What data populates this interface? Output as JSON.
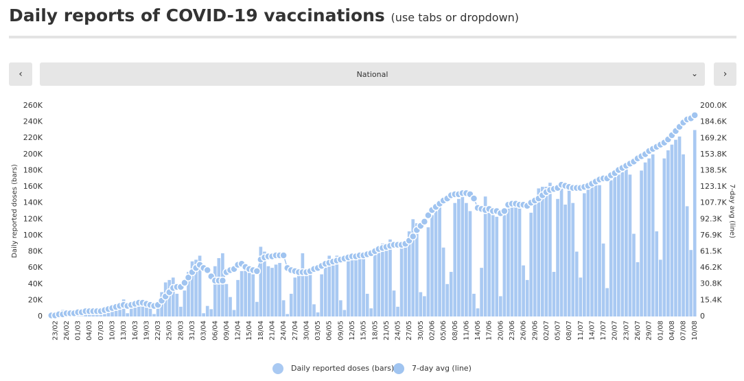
{
  "header": {
    "title": "Daily reports of COVID-19 vaccinations",
    "subtitle": "(use tabs or dropdown)"
  },
  "dropdown": {
    "selected": "National"
  },
  "chart_data": {
    "type": "bar",
    "categories": [
      null,
      "23/02",
      null,
      null,
      "26/02",
      null,
      null,
      "01/03",
      null,
      null,
      "04/03",
      null,
      null,
      "07/03",
      null,
      null,
      "10/03",
      null,
      null,
      "13/03",
      null,
      null,
      "16/03",
      null,
      null,
      "19/03",
      null,
      null,
      "22/03",
      null,
      null,
      "25/03",
      null,
      null,
      "28/03",
      null,
      null,
      "31/03",
      null,
      null,
      "03/04",
      null,
      null,
      "06/04",
      null,
      null,
      "09/04",
      null,
      null,
      "12/04",
      null,
      null,
      "15/04",
      null,
      null,
      "18/04",
      null,
      null,
      "21/04",
      null,
      null,
      "24/04",
      null,
      null,
      "27/04",
      null,
      null,
      "30/04",
      null,
      null,
      "03/05",
      null,
      null,
      "06/05",
      null,
      null,
      "09/05",
      null,
      null,
      "12/05",
      null,
      null,
      "15/05",
      null,
      null,
      "18/05",
      null,
      null,
      "21/05",
      null,
      null,
      "24/05",
      null,
      null,
      "27/05",
      null,
      null,
      "30/05",
      null,
      null,
      "02/06",
      null,
      null,
      "05/06",
      null,
      null,
      "08/06",
      null,
      null,
      "11/06",
      null,
      null,
      "14/06",
      null,
      null,
      "17/06",
      null,
      null,
      "20/06",
      null,
      null,
      "23/06",
      null,
      null,
      "26/06",
      null,
      null,
      "29/06",
      null,
      null,
      "02/07",
      null,
      null,
      "05/07",
      null,
      null,
      "08/07",
      null,
      null,
      "11/07",
      null,
      null,
      "14/07",
      null,
      null,
      "17/07",
      null,
      null,
      "20/07",
      null,
      null,
      "23/07",
      null,
      null,
      "26/07",
      null,
      null,
      "29/07",
      null,
      null,
      "01/08",
      null,
      null,
      "04/08",
      null,
      null,
      "07/08",
      null,
      null,
      "10/08"
    ],
    "series": [
      {
        "name": "Daily reported doses (bars)",
        "color": "#a9c9f2",
        "values": [
          2,
          1,
          3,
          8,
          4,
          3,
          2,
          3,
          4,
          5,
          5,
          5,
          4,
          2,
          5,
          6,
          8,
          10,
          14,
          21,
          4,
          12,
          20,
          18,
          15,
          12,
          11,
          3,
          12,
          30,
          42,
          45,
          48,
          28,
          12,
          32,
          55,
          68,
          70,
          75,
          4,
          13,
          9,
          62,
          72,
          78,
          40,
          24,
          8,
          45,
          56,
          60,
          56,
          52,
          18,
          86,
          80,
          62,
          60,
          64,
          66,
          20,
          3,
          28,
          48,
          55,
          78,
          50,
          55,
          15,
          5,
          52,
          65,
          75,
          70,
          75,
          20,
          8,
          70,
          72,
          72,
          75,
          80,
          28,
          10,
          78,
          85,
          90,
          88,
          95,
          32,
          12,
          85,
          90,
          105,
          120,
          115,
          30,
          25,
          110,
          125,
          130,
          135,
          85,
          40,
          55,
          140,
          145,
          148,
          140,
          130,
          28,
          10,
          60,
          148,
          130,
          125,
          123,
          25,
          125,
          135,
          138,
          136,
          135,
          63,
          45,
          128,
          140,
          158,
          160,
          160,
          165,
          55,
          145,
          163,
          138,
          160,
          140,
          80,
          48,
          152,
          160,
          165,
          170,
          162,
          90,
          35,
          168,
          172,
          175,
          178,
          185,
          175,
          102,
          67,
          180,
          190,
          195,
          200,
          105,
          70,
          195,
          205,
          212,
          218,
          222,
          200,
          136,
          82,
          230
        ]
      },
      {
        "name": "7-day avg (line)",
        "color": "#a0c4f0",
        "type": "line",
        "axis": "y2",
        "values": [
          1,
          1,
          2,
          2,
          3,
          3,
          3,
          4,
          4,
          5,
          5,
          5,
          5,
          5,
          6,
          7,
          8,
          9,
          10,
          11,
          10,
          11,
          12,
          13,
          13,
          12,
          11,
          10,
          11,
          15,
          19,
          23,
          27,
          28,
          28,
          32,
          37,
          42,
          46,
          49,
          46,
          44,
          38,
          34,
          34,
          34,
          42,
          44,
          45,
          49,
          50,
          47,
          45,
          44,
          43,
          54,
          56,
          57,
          57,
          58,
          58,
          58,
          46,
          44,
          43,
          42,
          42,
          42,
          43,
          45,
          46,
          48,
          50,
          51,
          52,
          53,
          54,
          55,
          56,
          57,
          57,
          58,
          58,
          59,
          60,
          62,
          64,
          65,
          66,
          67,
          68,
          68,
          68,
          69,
          72,
          76,
          82,
          86,
          90,
          96,
          101,
          104,
          107,
          110,
          112,
          115,
          116,
          116,
          117,
          117,
          116,
          112,
          103,
          102,
          101,
          102,
          100,
          100,
          98,
          100,
          106,
          107,
          107,
          106,
          106,
          105,
          108,
          110,
          112,
          115,
          118,
          120,
          121,
          122,
          125,
          124,
          123,
          122,
          122,
          122,
          123,
          124,
          126,
          128,
          130,
          131,
          131,
          134,
          136,
          139,
          141,
          143,
          145,
          147,
          150,
          152,
          154,
          157,
          159,
          161,
          163,
          165,
          168,
          172,
          176,
          180,
          184,
          187,
          188,
          191
        ]
      }
    ],
    "ylabel": "Daily reported doses (bars)",
    "y2label": "7-day avg (line)",
    "ylim": [
      0,
      260
    ],
    "yticks": [
      0,
      {
        "value": 20,
        "label": "20K"
      },
      {
        "value": 40,
        "label": "40K"
      },
      {
        "value": 60,
        "label": "60K"
      },
      {
        "value": 80,
        "label": "80K"
      },
      {
        "value": 100,
        "label": "100K"
      },
      {
        "value": 120,
        "label": "120K"
      },
      {
        "value": 140,
        "label": "140K"
      },
      {
        "value": 160,
        "label": "160K"
      },
      {
        "value": 180,
        "label": "180K"
      },
      {
        "value": 200,
        "label": "200K"
      },
      {
        "value": 220,
        "label": "220K"
      },
      {
        "value": 240,
        "label": "240K"
      },
      {
        "value": 260,
        "label": "260K"
      }
    ],
    "y2lim": [
      0,
      200
    ],
    "y2ticks": [
      0,
      {
        "value": 15.4,
        "label": "15.4K"
      },
      {
        "value": 30.8,
        "label": "30.8K"
      },
      {
        "value": 46.2,
        "label": "46.2K"
      },
      {
        "value": 61.5,
        "label": "61.5K"
      },
      {
        "value": 76.9,
        "label": "76.9K"
      },
      {
        "value": 92.3,
        "label": "92.3K"
      },
      {
        "value": 107.7,
        "label": "107.7K"
      },
      {
        "value": 123.1,
        "label": "123.1K"
      },
      {
        "value": 138.5,
        "label": "138.5K"
      },
      {
        "value": 153.8,
        "label": "153.8K"
      },
      {
        "value": 169.2,
        "label": "169.2K"
      },
      {
        "value": 184.6,
        "label": "184.6K"
      },
      {
        "value": 200,
        "label": "200.0K"
      }
    ]
  }
}
